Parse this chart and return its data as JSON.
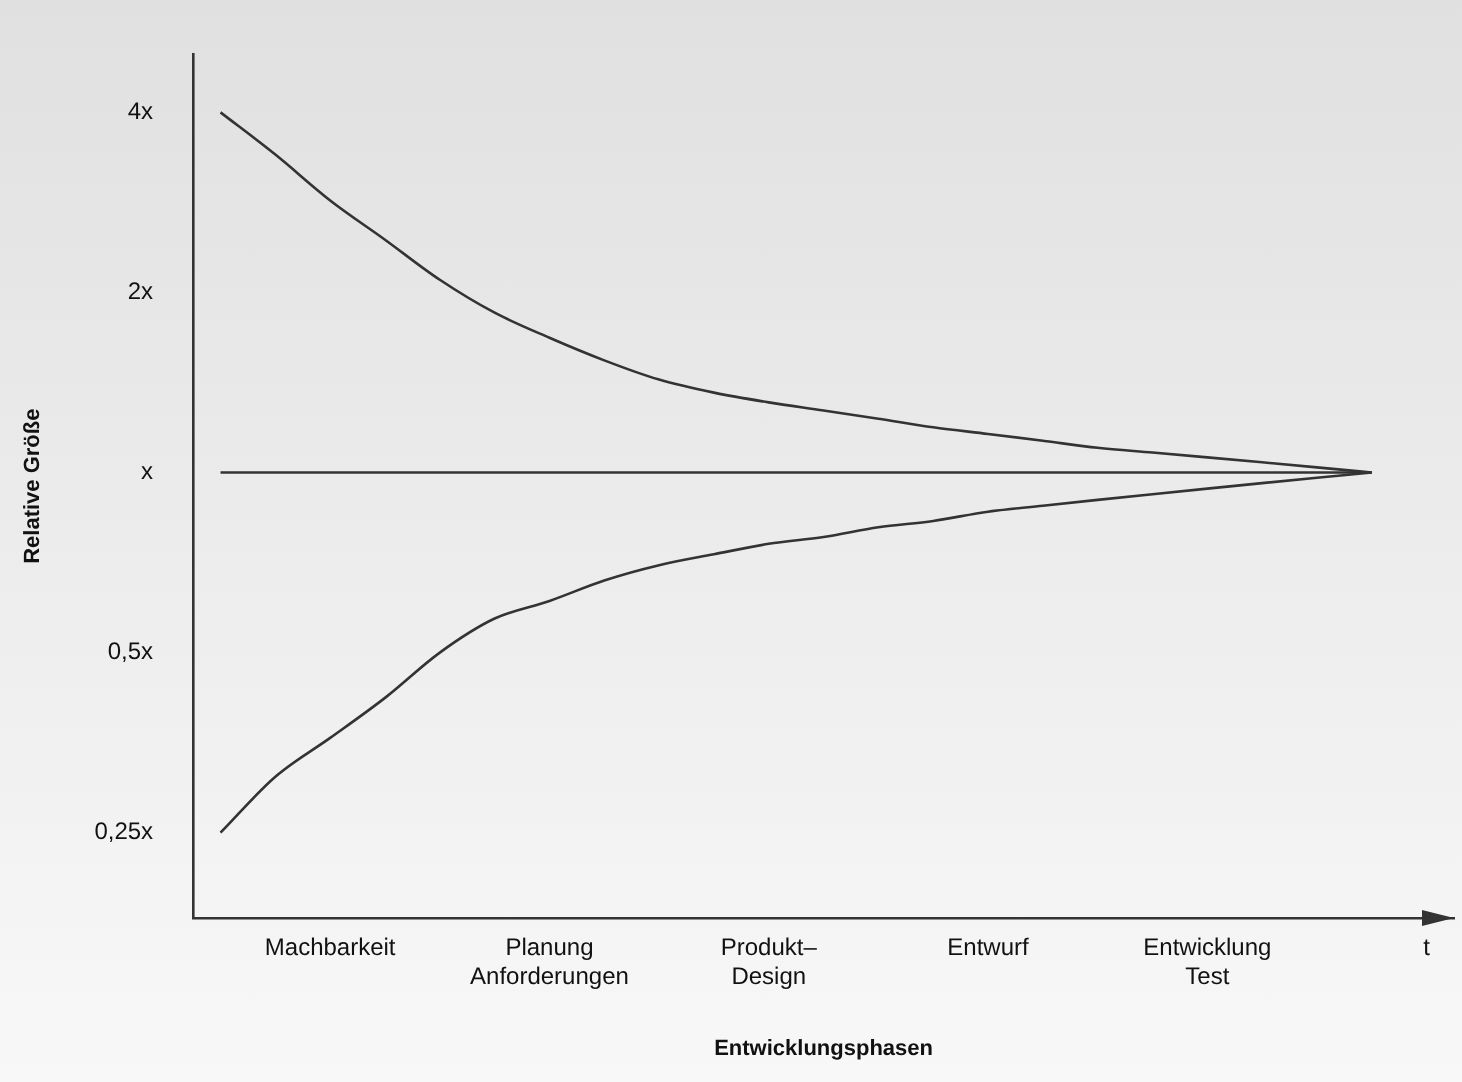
{
  "chart_data": {
    "type": "line",
    "xlabel": "Entwicklungsphasen",
    "ylabel": "Relative Größe",
    "log": "y",
    "grid": false,
    "legend": false,
    "marker": "none",
    "line_style": "solid",
    "categories": [
      null,
      null,
      "Machbarkeit",
      null,
      null,
      null,
      "Planung\nAnforderungen",
      null,
      null,
      null,
      "Produkt–\nDesign",
      null,
      null,
      null,
      "Entwurf",
      null,
      null,
      null,
      "Entwicklung\nTest",
      null,
      null,
      null,
      "t"
    ],
    "ylim": [
      0.18,
      5
    ],
    "yticks": [
      {
        "value": 0.25,
        "label": "0,25x"
      },
      {
        "value": 0.5,
        "label": "0,5x"
      },
      {
        "value": 1,
        "label": "x"
      },
      {
        "value": 2,
        "label": "2x"
      },
      {
        "value": 4,
        "label": "4x"
      }
    ],
    "series": [
      {
        "color": "#333333",
        "values": [
          4,
          3.4,
          2.85,
          2.45,
          2.1,
          1.85,
          1.68,
          1.54,
          1.43,
          1.36,
          1.31,
          1.27,
          1.23,
          1.19,
          1.16,
          1.13,
          1.1,
          1.08,
          1.06,
          1.04,
          1.02,
          1,
          null
        ]
      },
      {
        "color": "#333333",
        "values": [
          1,
          1,
          1,
          1,
          1,
          1,
          1,
          1,
          1,
          1,
          1,
          1,
          1,
          1,
          1,
          1,
          1,
          1,
          1,
          1,
          1,
          1,
          null
        ]
      },
      {
        "color": "#333333",
        "values": [
          0.25,
          0.31,
          0.36,
          0.42,
          0.5,
          0.57,
          0.61,
          0.66,
          0.7,
          0.73,
          0.76,
          0.78,
          0.81,
          0.83,
          0.86,
          0.88,
          0.9,
          0.92,
          0.94,
          0.96,
          0.98,
          1,
          null
        ]
      }
    ]
  }
}
